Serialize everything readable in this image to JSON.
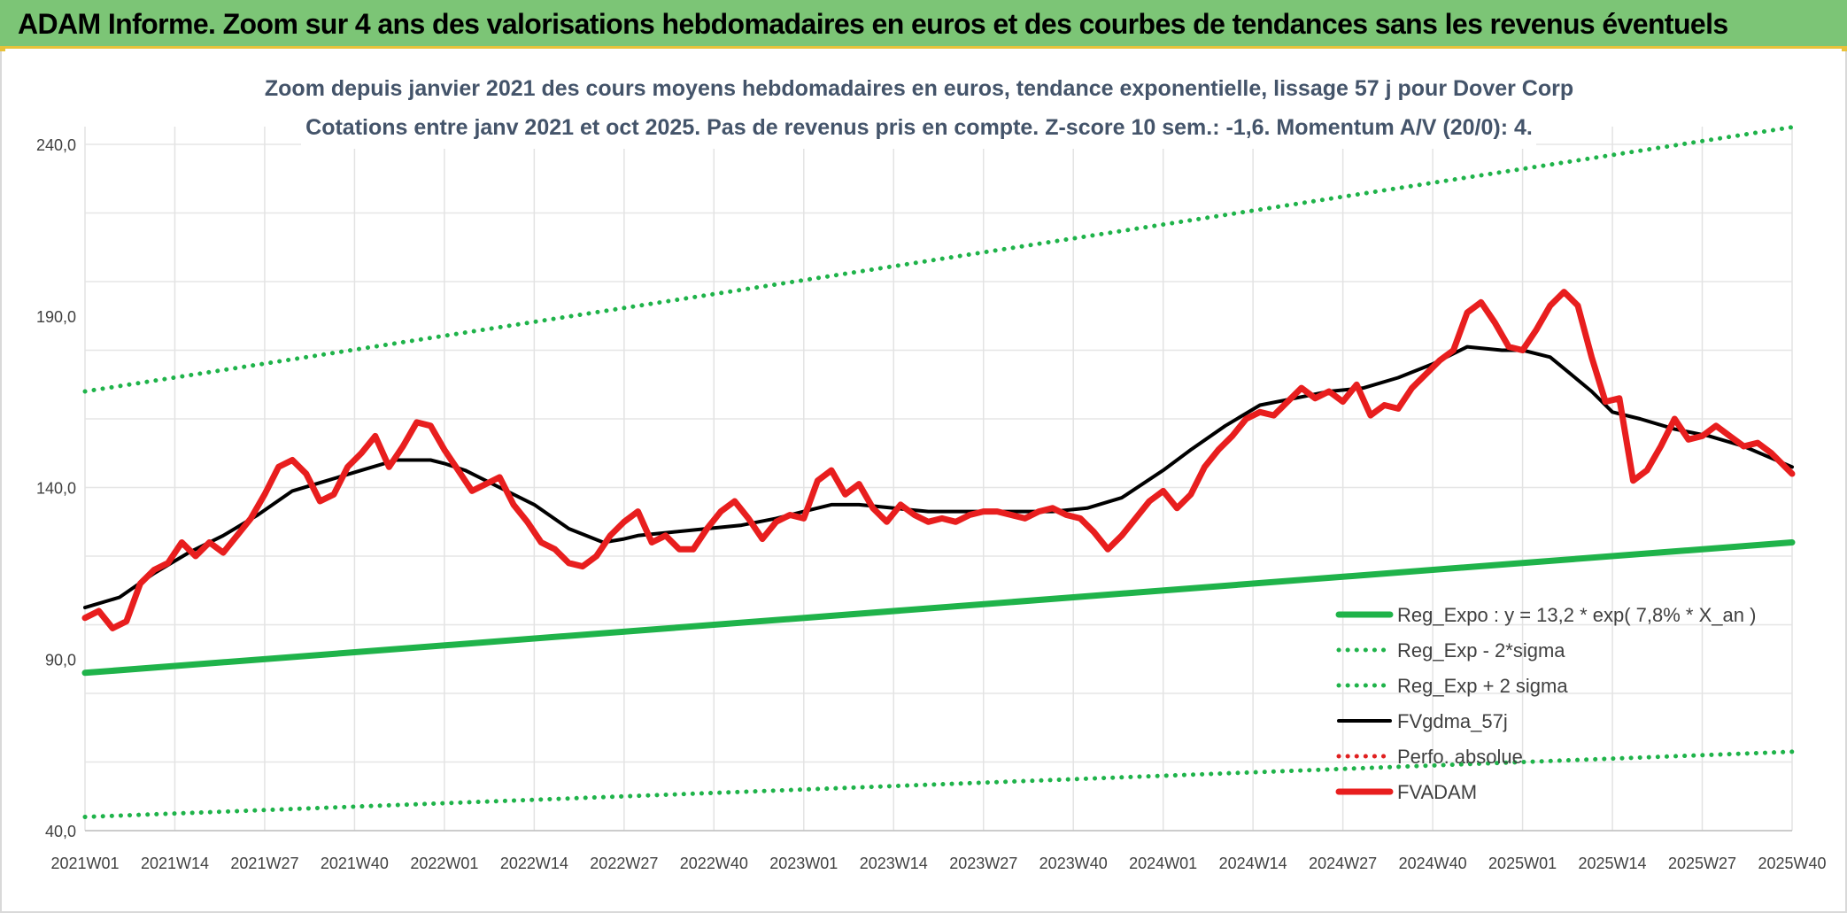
{
  "banner": {
    "title": "ADAM Informe. Zoom sur 4 ans des valorisations hebdomadaires en euros et des courbes de tendances sans les revenus éventuels"
  },
  "chart_data": {
    "type": "line",
    "title": "Zoom depuis janvier 2021 des cours moyens hebdomadaires en euros, tendance exponentielle, lissage 57 j pour Dover Corp",
    "subtitle": "Cotations entre janv 2021 et oct 2025. Pas de revenus pris en compte. Z-score 10 sem.: -1,6. Momentum A/V (20/0): 4.",
    "xlabel": "",
    "ylabel": "",
    "ylim": [
      40,
      240
    ],
    "y_ticks": [
      "240,0",
      "190,0",
      "140,0",
      "90,0",
      "40,0"
    ],
    "y_tick_values": [
      240,
      190,
      140,
      90,
      40
    ],
    "x_range": [
      0,
      247
    ],
    "x_ticks": [
      {
        "label": "2021W01",
        "i": 0
      },
      {
        "label": "2021W14",
        "i": 13
      },
      {
        "label": "2021W27",
        "i": 26
      },
      {
        "label": "2021W40",
        "i": 39
      },
      {
        "label": "2022W01",
        "i": 52
      },
      {
        "label": "2022W14",
        "i": 65
      },
      {
        "label": "2022W27",
        "i": 78
      },
      {
        "label": "2022W40",
        "i": 91
      },
      {
        "label": "2023W01",
        "i": 104
      },
      {
        "label": "2023W14",
        "i": 117
      },
      {
        "label": "2023W27",
        "i": 130
      },
      {
        "label": "2023W40",
        "i": 143
      },
      {
        "label": "2024W01",
        "i": 156
      },
      {
        "label": "2024W14",
        "i": 169
      },
      {
        "label": "2024W27",
        "i": 182
      },
      {
        "label": "2024W40",
        "i": 195
      },
      {
        "label": "2025W01",
        "i": 208
      },
      {
        "label": "2025W14",
        "i": 221
      },
      {
        "label": "2025W27",
        "i": 234
      },
      {
        "label": "2025W40",
        "i": 247
      }
    ],
    "legend_position": "bottom-right",
    "grid": true,
    "series": [
      {
        "name": "Reg_Expo : y = 13,2 * exp( 7,8% *  X_an )",
        "color": "#1fb34a",
        "style": "solid-thick",
        "x": [
          0,
          247
        ],
        "y": [
          86,
          124
        ]
      },
      {
        "name": "Reg_Exp - 2*sigma",
        "color": "#1fb34a",
        "style": "dotted",
        "x": [
          0,
          247
        ],
        "y": [
          44,
          63
        ]
      },
      {
        "name": "Reg_Exp + 2 sigma",
        "color": "#1fb34a",
        "style": "dotted",
        "x": [
          0,
          247
        ],
        "y": [
          168,
          245
        ]
      },
      {
        "name": "FVgdma_57j",
        "color": "#000000",
        "style": "solid",
        "x": [
          0,
          5,
          10,
          15,
          20,
          25,
          30,
          35,
          40,
          45,
          50,
          52,
          55,
          60,
          65,
          70,
          75,
          78,
          80,
          85,
          90,
          95,
          100,
          104,
          108,
          112,
          117,
          122,
          127,
          130,
          135,
          140,
          145,
          150,
          156,
          160,
          165,
          170,
          175,
          180,
          185,
          190,
          195,
          200,
          205,
          208,
          212,
          215,
          218,
          221,
          225,
          230,
          235,
          240,
          247
        ],
        "y": [
          105,
          108,
          115,
          121,
          126,
          132,
          139,
          142,
          145,
          148,
          148,
          147,
          145,
          140,
          135,
          128,
          124,
          125,
          126,
          127,
          128,
          129,
          131,
          133,
          135,
          135,
          134,
          133,
          133,
          133,
          133,
          133,
          134,
          137,
          145,
          151,
          158,
          164,
          166,
          168,
          169,
          172,
          176,
          181,
          180,
          180,
          178,
          173,
          168,
          162,
          160,
          157,
          155,
          152,
          146
        ]
      },
      {
        "name": "Perfo. absolue",
        "color": "#e02020",
        "style": "dotted",
        "x": [],
        "y": []
      },
      {
        "name": "FVADAM",
        "color": "#e81e1e",
        "style": "solid-thick",
        "x": [
          0,
          2,
          4,
          6,
          8,
          10,
          12,
          14,
          16,
          18,
          20,
          22,
          24,
          26,
          28,
          30,
          32,
          34,
          36,
          38,
          40,
          42,
          44,
          46,
          48,
          50,
          52,
          54,
          56,
          58,
          60,
          62,
          64,
          66,
          68,
          70,
          72,
          74,
          76,
          78,
          80,
          82,
          84,
          86,
          88,
          90,
          92,
          94,
          96,
          98,
          100,
          102,
          104,
          106,
          108,
          110,
          112,
          114,
          116,
          118,
          120,
          122,
          124,
          126,
          128,
          130,
          132,
          134,
          136,
          138,
          140,
          142,
          144,
          146,
          148,
          150,
          152,
          154,
          156,
          158,
          160,
          162,
          164,
          166,
          168,
          170,
          172,
          174,
          176,
          178,
          180,
          182,
          184,
          186,
          188,
          190,
          192,
          194,
          196,
          198,
          200,
          202,
          204,
          206,
          208,
          210,
          212,
          214,
          216,
          218,
          220,
          222,
          224,
          226,
          228,
          230,
          232,
          234,
          236,
          238,
          240,
          242,
          244,
          246,
          247
        ],
        "y": [
          102,
          104,
          99,
          101,
          112,
          116,
          118,
          124,
          120,
          124,
          121,
          126,
          131,
          138,
          146,
          148,
          144,
          136,
          138,
          146,
          150,
          155,
          146,
          152,
          159,
          158,
          151,
          145,
          139,
          141,
          143,
          135,
          130,
          124,
          122,
          118,
          117,
          120,
          126,
          130,
          133,
          124,
          126,
          122,
          122,
          128,
          133,
          136,
          131,
          125,
          130,
          132,
          131,
          142,
          145,
          138,
          141,
          134,
          130,
          135,
          132,
          130,
          131,
          130,
          132,
          133,
          133,
          132,
          131,
          133,
          134,
          132,
          131,
          127,
          122,
          126,
          131,
          136,
          139,
          134,
          138,
          146,
          151,
          155,
          160,
          162,
          161,
          165,
          169,
          166,
          168,
          165,
          170,
          161,
          164,
          163,
          169,
          173,
          177,
          180,
          191,
          194,
          188,
          181,
          180,
          186,
          193,
          197,
          193,
          178,
          165,
          166,
          142,
          145,
          152,
          160,
          154,
          155,
          158,
          155,
          152,
          153,
          150,
          146,
          144
        ]
      }
    ]
  }
}
